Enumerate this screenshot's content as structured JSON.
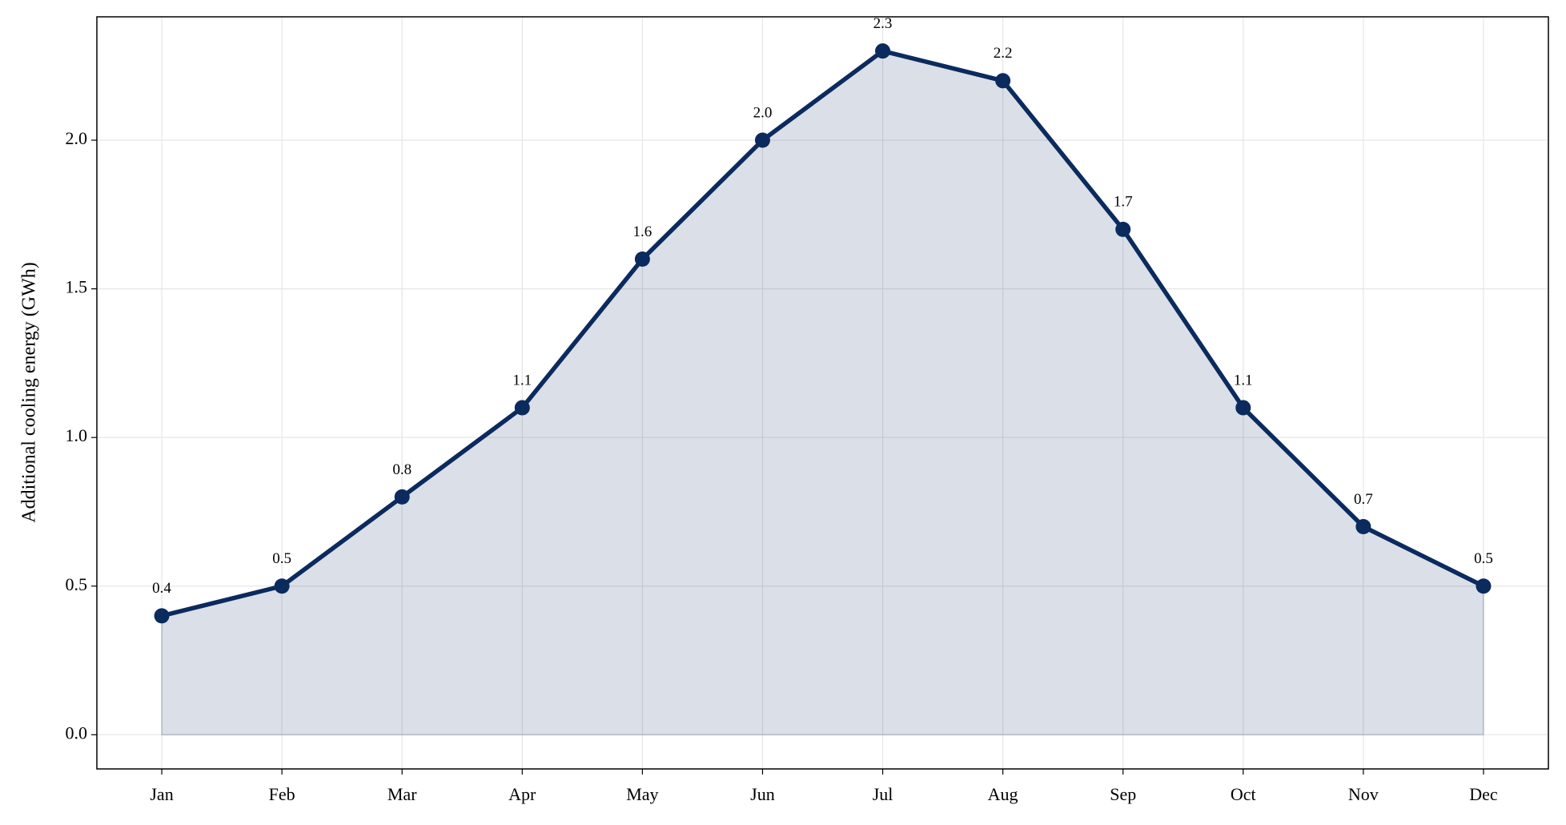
{
  "chart_data": {
    "type": "area-line",
    "y_label": "Additional cooling energy (GWh)",
    "categories": [
      "Jan",
      "Feb",
      "Mar",
      "Apr",
      "May",
      "Jun",
      "Jul",
      "Aug",
      "Sep",
      "Oct",
      "Nov",
      "Dec"
    ],
    "values": [
      0.4,
      0.5,
      0.8,
      1.1,
      1.6,
      2.0,
      2.3,
      2.2,
      1.7,
      1.1,
      0.7,
      0.5
    ],
    "value_labels": [
      "0.4",
      "0.5",
      "0.8",
      "1.1",
      "1.6",
      "2.0",
      "2.3",
      "2.2",
      "1.7",
      "1.1",
      "0.7",
      "0.5"
    ],
    "color": "#0b2a5e",
    "ylim": [
      -0.115,
      2.415
    ],
    "yticks": [
      {
        "value": 0,
        "label": "0.0"
      },
      0.5,
      {
        "value": 1,
        "label": "1.0"
      },
      1.5,
      {
        "value": 2,
        "label": "2.0"
      }
    ],
    "grid": true
  }
}
